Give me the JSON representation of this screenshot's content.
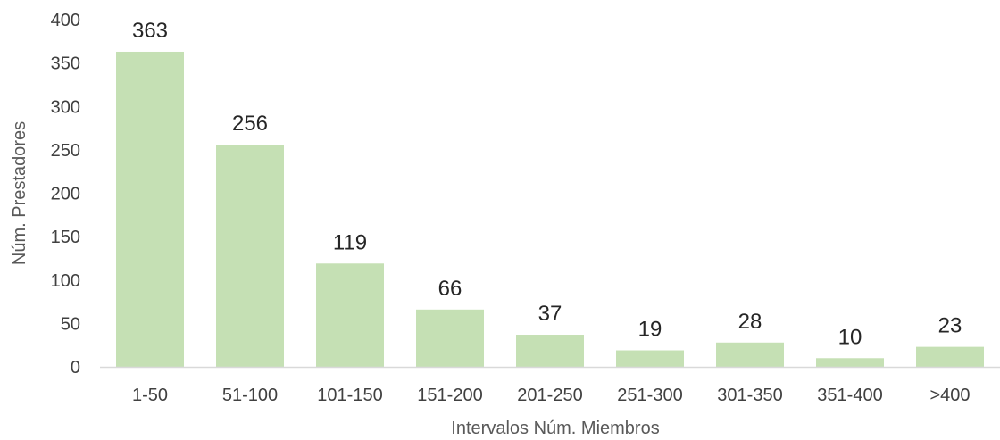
{
  "chart_data": {
    "type": "bar",
    "categories": [
      "1-50",
      "51-100",
      "101-150",
      "151-200",
      "201-250",
      "251-300",
      "301-350",
      "351-400",
      ">400"
    ],
    "values": [
      363,
      256,
      119,
      66,
      37,
      19,
      28,
      10,
      23
    ],
    "xlabel": "Intervalos Núm. Miembros",
    "ylabel": "Núm. Prestadores",
    "ylim": [
      0,
      400
    ],
    "yticks": [
      0,
      50,
      100,
      150,
      200,
      250,
      300,
      350,
      400
    ],
    "data_labels": true,
    "grid": false,
    "legend": "none",
    "colors": {
      "bar": "#c5e0b4",
      "axis": "#d9d9d9"
    }
  }
}
